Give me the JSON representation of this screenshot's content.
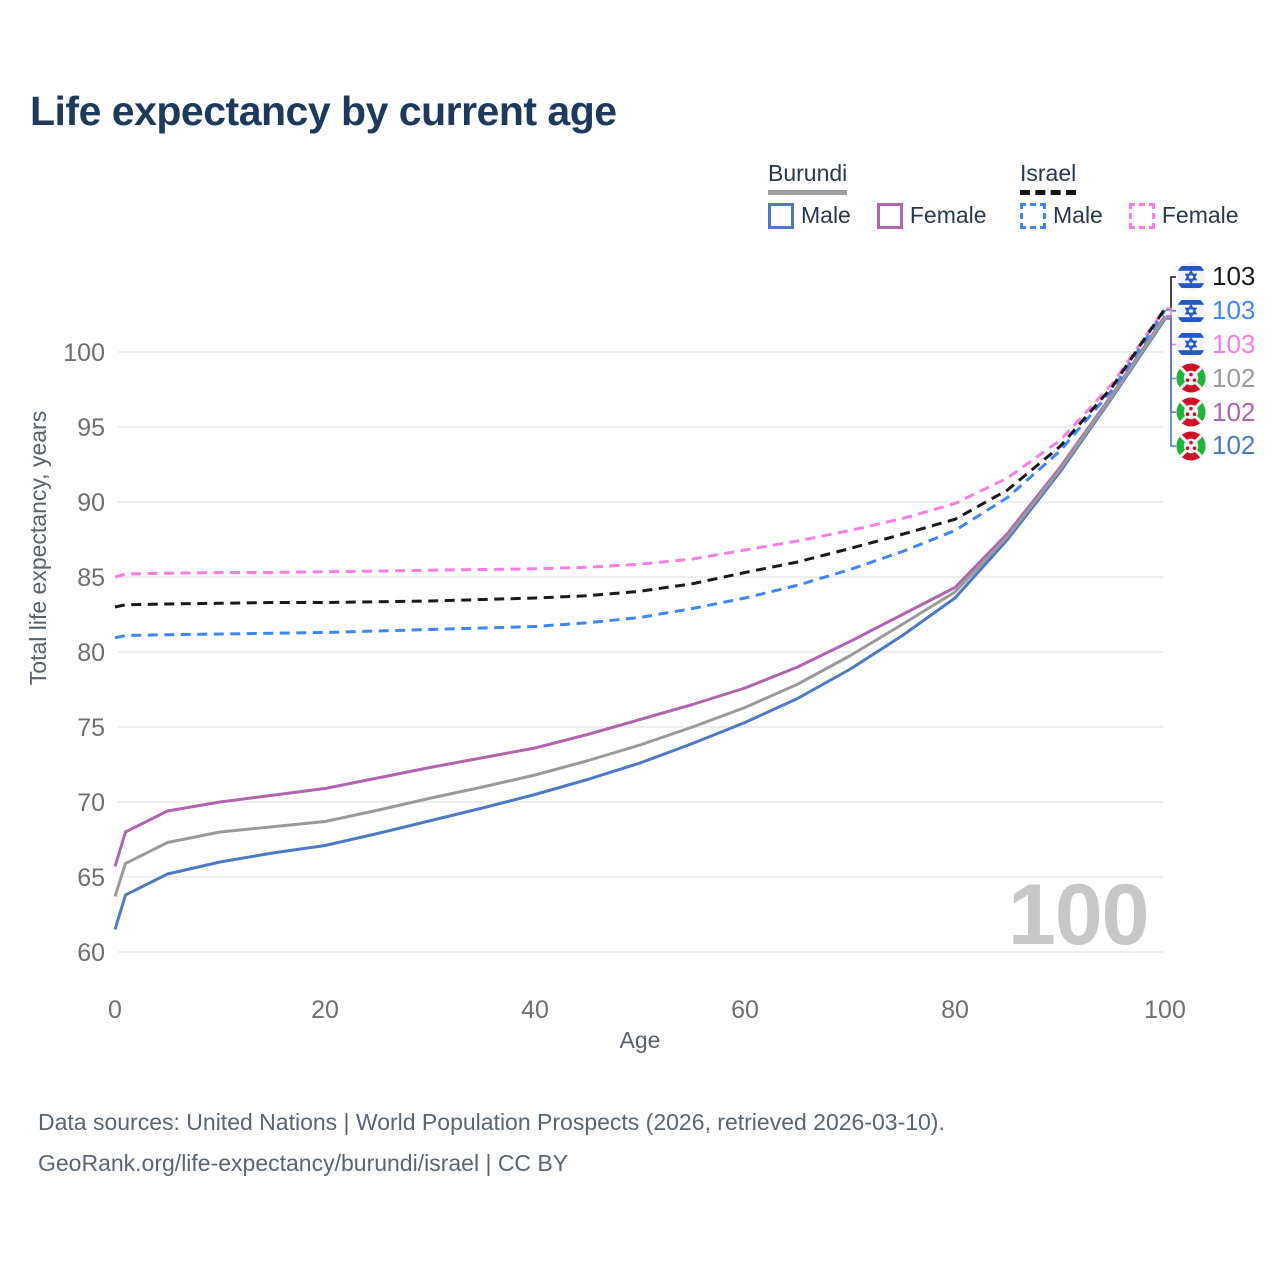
{
  "title": "Life expectancy by current age",
  "legend": {
    "groups": [
      {
        "name": "Burundi",
        "line_style": "solid",
        "underline_color": "#9e9e9e",
        "items": [
          {
            "label": "Male",
            "color": "#4d7ac2"
          },
          {
            "label": "Female",
            "color": "#b065ae"
          }
        ]
      },
      {
        "name": "Israel",
        "line_style": "dashed",
        "underline_color": "#151515",
        "items": [
          {
            "label": "Male",
            "color": "#3f87f5"
          },
          {
            "label": "Female",
            "color": "#ff7ce5"
          }
        ]
      }
    ]
  },
  "watermark": "100",
  "footer": {
    "line1": "Data sources: United Nations | World Population Prospects (2026, retrieved 2026-03-10).",
    "line2": "GeoRank.org/life-expectancy/burundi/israel | CC BY"
  },
  "end_labels": [
    {
      "value": "103",
      "flag": "israel-flag-icon",
      "color": "#1a1a1a"
    },
    {
      "value": "103",
      "flag": "israel-flag-icon",
      "color": "#3f87f5"
    },
    {
      "value": "103",
      "flag": "israel-flag-icon",
      "color": "#ff7ce5"
    },
    {
      "value": "102",
      "flag": "burundi-flag-icon",
      "color": "#9a9a9a"
    },
    {
      "value": "102",
      "flag": "burundi-flag-icon",
      "color": "#b065ae"
    },
    {
      "value": "102",
      "flag": "burundi-flag-icon",
      "color": "#4d7ac2"
    }
  ],
  "chart_data": {
    "type": "line",
    "title": "Life expectancy by current age",
    "xlabel": "Age",
    "ylabel": "Total life expectancy, years",
    "xlim": [
      0,
      100
    ],
    "ylim": [
      60,
      103.5
    ],
    "xticks": [
      0,
      20,
      40,
      60,
      80,
      100
    ],
    "yticks": [
      60,
      65,
      70,
      75,
      80,
      85,
      90,
      95,
      100
    ],
    "grid": true,
    "legend_position": "top-right",
    "x": [
      0,
      1,
      5,
      10,
      15,
      20,
      25,
      30,
      35,
      40,
      45,
      50,
      55,
      60,
      65,
      70,
      75,
      80,
      85,
      90,
      95,
      100
    ],
    "series": [
      {
        "name": "Israel Both sexes",
        "country": "Israel",
        "sex": "Both",
        "color": "#1a1a1a",
        "dashed": true,
        "end_label": 103,
        "values": [
          83.0,
          83.15,
          83.2,
          83.25,
          83.3,
          83.3,
          83.35,
          83.4,
          83.5,
          83.6,
          83.75,
          84.05,
          84.55,
          85.3,
          86.0,
          86.9,
          87.85,
          88.85,
          90.8,
          93.7,
          97.7,
          102.9
        ]
      },
      {
        "name": "Israel Male",
        "country": "Israel",
        "sex": "Male",
        "color": "#3f87f5",
        "dashed": true,
        "end_label": 103,
        "values": [
          80.95,
          81.1,
          81.15,
          81.2,
          81.25,
          81.3,
          81.4,
          81.5,
          81.6,
          81.7,
          81.95,
          82.3,
          82.9,
          83.6,
          84.45,
          85.5,
          86.7,
          88.1,
          90.3,
          93.4,
          97.5,
          102.8
        ]
      },
      {
        "name": "Israel Female",
        "country": "Israel",
        "sex": "Female",
        "color": "#ff7ce5",
        "dashed": true,
        "end_label": 103,
        "values": [
          85.0,
          85.2,
          85.25,
          85.3,
          85.3,
          85.35,
          85.4,
          85.45,
          85.5,
          85.55,
          85.65,
          85.85,
          86.2,
          86.8,
          87.4,
          88.1,
          88.9,
          89.9,
          91.6,
          94.1,
          97.9,
          102.9
        ]
      },
      {
        "name": "Burundi Both sexes",
        "country": "Burundi",
        "sex": "Both",
        "color": "#9a9a9a",
        "dashed": false,
        "end_label": 102,
        "values": [
          63.7,
          65.9,
          67.3,
          68.0,
          68.35,
          68.7,
          69.45,
          70.25,
          71.0,
          71.8,
          72.75,
          73.8,
          75.0,
          76.3,
          77.85,
          79.75,
          81.85,
          84.0,
          87.7,
          92.15,
          97.1,
          102.3
        ]
      },
      {
        "name": "Burundi Female",
        "country": "Burundi",
        "sex": "Female",
        "color": "#b065ae",
        "dashed": false,
        "end_label": 102,
        "values": [
          65.7,
          68.0,
          69.4,
          70.0,
          70.45,
          70.9,
          71.6,
          72.3,
          72.95,
          73.6,
          74.5,
          75.5,
          76.5,
          77.6,
          79.0,
          80.7,
          82.5,
          84.3,
          87.9,
          92.3,
          97.2,
          102.4
        ]
      },
      {
        "name": "Burundi Male",
        "country": "Burundi",
        "sex": "Male",
        "color": "#4d7ac2",
        "dashed": false,
        "end_label": 102,
        "values": [
          61.5,
          63.8,
          65.2,
          66.0,
          66.6,
          67.1,
          67.9,
          68.75,
          69.6,
          70.5,
          71.5,
          72.6,
          73.9,
          75.3,
          76.9,
          78.85,
          81.1,
          83.6,
          87.5,
          92.0,
          97.0,
          102.2
        ]
      }
    ]
  },
  "colors": {
    "title": "#1d3a5c",
    "axis_text": "#6f6f6f",
    "axis_title": "#59616b",
    "gridline": "#e9e9e9",
    "watermark": "#c7c7c7",
    "footer_text": "#5b6571"
  }
}
